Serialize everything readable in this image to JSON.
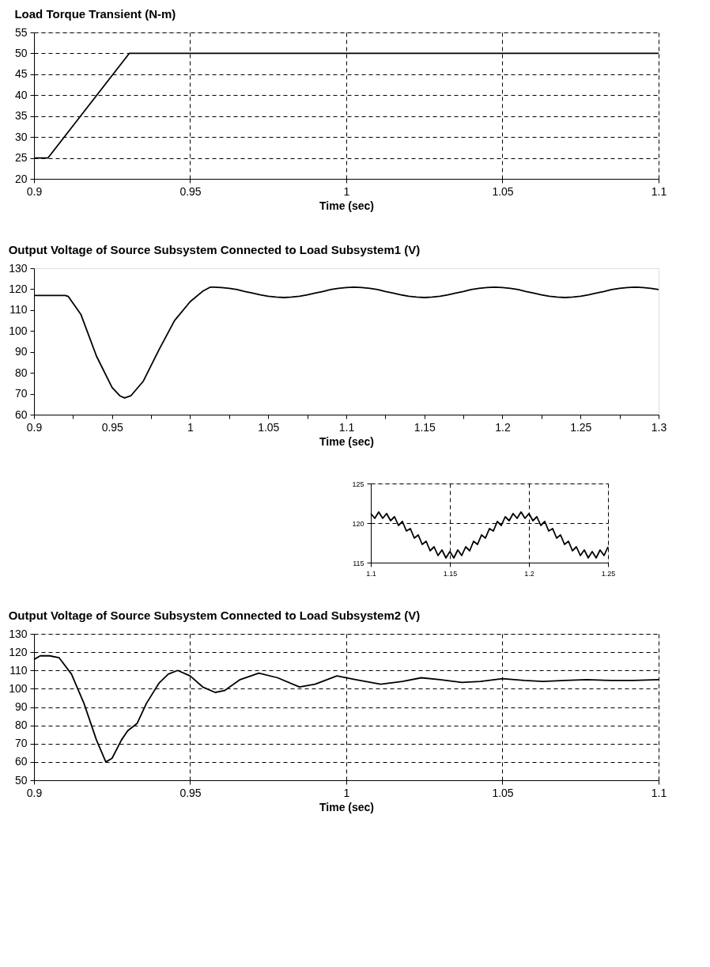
{
  "chart_data": [
    {
      "type": "line",
      "title": "Load Torque Transient (N-m)",
      "xlabel": "Time (sec)",
      "grid": true,
      "xlim": [
        0.9,
        1.1
      ],
      "xticks": [
        0.9,
        0.95,
        1,
        1.05,
        1.1
      ],
      "ylim": [
        20,
        55
      ],
      "yticks": [
        20,
        25,
        30,
        35,
        40,
        45,
        50,
        55
      ],
      "series": [
        {
          "color": "#000000",
          "x": [
            0.9,
            0.9045,
            0.9305,
            1.1
          ],
          "values": [
            25,
            25,
            50,
            50
          ]
        }
      ]
    },
    {
      "type": "line",
      "title": "Output Voltage of Source Subsystem Connected to Load Subsystem1 (V)",
      "xlabel": "Time (sec)",
      "grid": false,
      "xlim": [
        0.9,
        1.3
      ],
      "xticks": [
        0.9,
        {
          "value": 0.925,
          "label": null
        },
        0.95,
        {
          "value": 0.975,
          "label": null
        },
        1,
        {
          "value": 1.025,
          "label": null
        },
        1.05,
        {
          "value": 1.075,
          "label": null
        },
        1.1,
        {
          "value": 1.125,
          "label": null
        },
        1.15,
        {
          "value": 1.175,
          "label": null
        },
        1.2,
        {
          "value": 1.225,
          "label": null
        },
        1.25,
        {
          "value": 1.275,
          "label": null
        },
        1.3
      ],
      "ylim": [
        60,
        130
      ],
      "yticks": [
        60,
        70,
        80,
        90,
        100,
        110,
        120,
        130
      ],
      "series": [
        {
          "color": "#000000",
          "x": [
            0.9,
            0.92,
            0.922,
            0.93,
            0.94,
            0.95,
            0.955,
            0.958,
            0.962,
            0.97,
            0.98,
            0.99,
            1.0,
            1.008,
            1.013,
            1.015,
            1.02,
            1.025,
            1.03,
            1.035,
            1.04,
            1.045,
            1.05,
            1.055,
            1.06,
            1.065,
            1.07,
            1.075,
            1.08,
            1.085,
            1.09,
            1.095,
            1.1,
            1.105,
            1.11,
            1.115,
            1.12,
            1.125,
            1.13,
            1.135,
            1.14,
            1.145,
            1.15,
            1.155,
            1.16,
            1.165,
            1.17,
            1.175,
            1.18,
            1.185,
            1.19,
            1.195,
            1.2,
            1.205,
            1.21,
            1.215,
            1.22,
            1.225,
            1.23,
            1.235,
            1.24,
            1.245,
            1.25,
            1.255,
            1.26,
            1.265,
            1.27,
            1.275,
            1.28,
            1.285,
            1.29,
            1.295,
            1.3
          ],
          "values": [
            117,
            117,
            116.5,
            108,
            88,
            73,
            69,
            68,
            69,
            76,
            91,
            105,
            114,
            119,
            121,
            121,
            120.8,
            120.4,
            119.8,
            118.9,
            118.1,
            117.3,
            116.6,
            116.2,
            116,
            116.2,
            116.6,
            117.3,
            118.1,
            118.9,
            119.8,
            120.4,
            120.8,
            121,
            120.8,
            120.4,
            119.8,
            118.9,
            118.1,
            117.3,
            116.6,
            116.2,
            116,
            116.2,
            116.6,
            117.3,
            118.1,
            118.9,
            119.8,
            120.4,
            120.8,
            121,
            120.8,
            120.4,
            119.8,
            118.9,
            118.1,
            117.3,
            116.6,
            116.2,
            116,
            116.2,
            116.6,
            117.3,
            118.1,
            118.9,
            119.8,
            120.4,
            120.8,
            121,
            120.8,
            120.4,
            119.8
          ]
        }
      ]
    },
    {
      "type": "line",
      "grid": true,
      "xlim": [
        1.1,
        1.25
      ],
      "xticks": [
        1.1,
        1.15,
        1.2,
        1.25
      ],
      "ylim": [
        115,
        125
      ],
      "yticks": [
        115,
        120,
        125
      ],
      "series": [
        {
          "color": "#000000",
          "x": [
            1.1,
            1.1025,
            1.105,
            1.1075,
            1.11,
            1.1125,
            1.115,
            1.1175,
            1.12,
            1.1225,
            1.125,
            1.1275,
            1.13,
            1.1325,
            1.135,
            1.1375,
            1.14,
            1.1425,
            1.145,
            1.1475,
            1.15,
            1.1525,
            1.155,
            1.1575,
            1.16,
            1.1625,
            1.165,
            1.1675,
            1.17,
            1.1725,
            1.175,
            1.1775,
            1.18,
            1.1825,
            1.185,
            1.1875,
            1.19,
            1.1925,
            1.195,
            1.1975,
            1.2,
            1.2025,
            1.205,
            1.2075,
            1.21,
            1.2125,
            1.215,
            1.2175,
            1.22,
            1.2225,
            1.225,
            1.2275,
            1.23,
            1.2325,
            1.235,
            1.2375,
            1.24,
            1.2425,
            1.245,
            1.2475,
            1.25
          ],
          "values": [
            121.2,
            120.6,
            121.4,
            120.6,
            121.2,
            120.3,
            120.8,
            119.7,
            120.2,
            119.0,
            119.3,
            118.1,
            118.5,
            117.3,
            117.7,
            116.5,
            117.0,
            115.9,
            116.6,
            115.6,
            116.4,
            115.6,
            116.6,
            115.9,
            117.0,
            116.5,
            117.7,
            117.3,
            118.5,
            118.1,
            119.3,
            119.0,
            120.2,
            119.7,
            120.8,
            120.3,
            121.2,
            120.6,
            121.4,
            120.6,
            121.2,
            120.3,
            120.8,
            119.7,
            120.2,
            119.0,
            119.3,
            118.1,
            118.5,
            117.3,
            117.7,
            116.5,
            117.0,
            115.9,
            116.6,
            115.6,
            116.4,
            115.6,
            116.6,
            115.9,
            117.0
          ]
        }
      ]
    },
    {
      "type": "line",
      "title": "Output Voltage of Source Subsystem Connected to Load Subsystem2 (V)",
      "xlabel": "Time (sec)",
      "grid": true,
      "xlim": [
        0.9,
        1.1
      ],
      "xticks": [
        0.9,
        0.95,
        1,
        1.05,
        1.1
      ],
      "ylim": [
        50,
        130
      ],
      "yticks": [
        50,
        60,
        70,
        80,
        90,
        100,
        110,
        120,
        130
      ],
      "series": [
        {
          "color": "#000000",
          "x": [
            0.9,
            0.902,
            0.905,
            0.908,
            0.912,
            0.916,
            0.92,
            0.923,
            0.925,
            0.928,
            0.93,
            0.933,
            0.936,
            0.94,
            0.943,
            0.946,
            0.95,
            0.954,
            0.958,
            0.961,
            0.966,
            0.972,
            0.978,
            0.985,
            0.99,
            0.997,
            1.003,
            1.011,
            1.018,
            1.024,
            1.03,
            1.037,
            1.043,
            1.05,
            1.057,
            1.063,
            1.07,
            1.077,
            1.085,
            1.092,
            1.1
          ],
          "values": [
            116,
            118,
            118,
            117,
            108,
            92,
            72,
            60,
            62,
            72,
            77,
            81,
            92,
            103,
            108,
            110,
            107,
            101,
            98,
            99,
            105,
            108.5,
            106,
            101,
            102.5,
            107,
            105,
            102.5,
            104,
            106,
            105,
            103.5,
            104,
            105.5,
            104.5,
            104,
            104.5,
            105,
            104.5,
            104.5,
            105
          ]
        }
      ]
    }
  ]
}
